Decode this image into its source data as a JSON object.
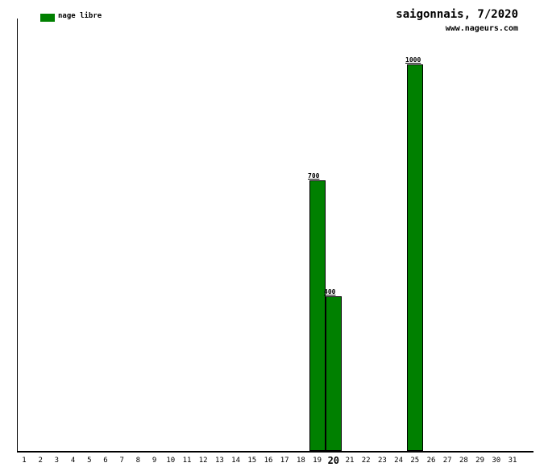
{
  "header": {
    "title": "saigonnais, 7/2020",
    "subtitle": "www.nageurs.com"
  },
  "legend": {
    "items": [
      {
        "label": "nage libre",
        "color": "#008000"
      }
    ]
  },
  "chart_data": {
    "type": "bar",
    "title": "saigonnais, 7/2020",
    "subtitle": "www.nageurs.com",
    "categories": [
      "1",
      "2",
      "3",
      "4",
      "5",
      "6",
      "7",
      "8",
      "9",
      "10",
      "11",
      "12",
      "13",
      "14",
      "15",
      "16",
      "17",
      "18",
      "19",
      "20",
      "21",
      "22",
      "23",
      "24",
      "25",
      "26",
      "27",
      "28",
      "29",
      "30",
      "31"
    ],
    "series": [
      {
        "name": "nage libre",
        "color": "#008000",
        "values": [
          null,
          null,
          null,
          null,
          null,
          null,
          null,
          null,
          null,
          null,
          null,
          null,
          null,
          null,
          null,
          null,
          null,
          null,
          700,
          400,
          null,
          null,
          null,
          null,
          1000,
          null,
          null,
          null,
          null,
          null,
          null
        ]
      }
    ],
    "data_labels": [
      {
        "category": "19",
        "label": "700"
      },
      {
        "category": "20",
        "label": "400"
      },
      {
        "category": "25",
        "label": "1000"
      }
    ],
    "highlighted_category": "20",
    "ylim": [
      0,
      1120
    ],
    "grid": false,
    "legend_position": "top-left"
  }
}
